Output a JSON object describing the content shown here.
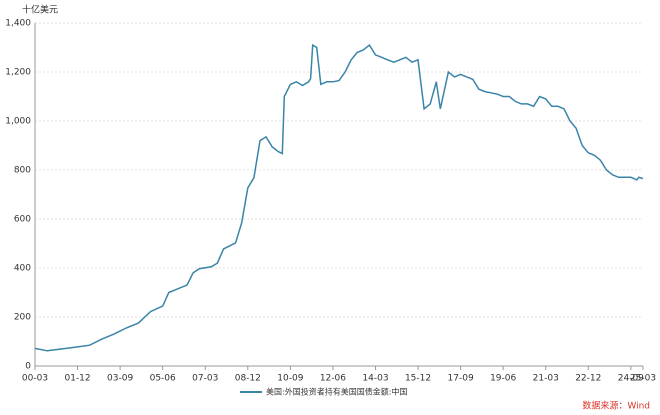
{
  "chart_data": {
    "type": "line",
    "unit_label": "十亿美元",
    "source": "数据来源：Wind",
    "x": [
      "00-03",
      "00-09",
      "01-03",
      "01-12",
      "02-06",
      "02-12",
      "03-06",
      "03-12",
      "04-06",
      "04-12",
      "05-06",
      "05-09",
      "05-12",
      "06-06",
      "06-09",
      "06-12",
      "07-06",
      "07-09",
      "07-12",
      "08-03",
      "08-06",
      "08-09",
      "08-12",
      "09-03",
      "09-06",
      "09-09",
      "09-12",
      "10-03",
      "10-05",
      "10-06",
      "10-09",
      "10-12",
      "11-03",
      "11-06",
      "11-07",
      "11-08",
      "11-10",
      "11-12",
      "12-03",
      "12-06",
      "12-09",
      "12-12",
      "13-03",
      "13-06",
      "13-09",
      "13-12",
      "14-03",
      "14-06",
      "14-09",
      "14-12",
      "15-03",
      "15-06",
      "15-09",
      "15-12",
      "16-03",
      "16-06",
      "16-09",
      "16-11",
      "17-03",
      "17-06",
      "17-09",
      "17-12",
      "18-03",
      "18-06",
      "18-09",
      "18-12",
      "19-03",
      "19-06",
      "19-09",
      "19-12",
      "20-03",
      "20-06",
      "20-09",
      "20-12",
      "21-03",
      "21-06",
      "21-09",
      "21-12",
      "22-03",
      "22-06",
      "22-09",
      "22-12",
      "23-03",
      "23-06",
      "23-09",
      "23-12",
      "24-03",
      "24-06",
      "24-09",
      "24-12",
      "25-01",
      "25-03"
    ],
    "xticks": [
      "00-03",
      "01-12",
      "03-09",
      "05-06",
      "07-03",
      "08-12",
      "10-09",
      "12-06",
      "14-03",
      "15-12",
      "17-09",
      "19-06",
      "21-03",
      "22-12",
      "24-09"
    ],
    "x_end_label": "25-03",
    "series": [
      {
        "name": "美国:外国投资者持有美国国债金额:中国",
        "color": "#3a84a8",
        "values": [
          72,
          62,
          68,
          78,
          85,
          110,
          130,
          155,
          175,
          222,
          245,
          300,
          310,
          330,
          380,
          397,
          405,
          420,
          478,
          490,
          503,
          585,
          727,
          768,
          920,
          935,
          895,
          875,
          867,
          1100,
          1150,
          1160,
          1145,
          1160,
          1173,
          1310,
          1300,
          1150,
          1160,
          1160,
          1165,
          1200,
          1250,
          1280,
          1290,
          1310,
          1270,
          1260,
          1250,
          1240,
          1250,
          1260,
          1240,
          1250,
          1050,
          1070,
          1160,
          1050,
          1200,
          1180,
          1190,
          1180,
          1170,
          1130,
          1120,
          1115,
          1110,
          1100,
          1100,
          1080,
          1070,
          1070,
          1060,
          1100,
          1090,
          1060,
          1060,
          1050,
          1000,
          970,
          900,
          870,
          860,
          840,
          800,
          780,
          770,
          770,
          770,
          760,
          770,
          765
        ]
      }
    ],
    "ylim": [
      0,
      1400
    ],
    "yticks": [
      0,
      200,
      400,
      600,
      800,
      {
        "value": 1000,
        "label": "1,000"
      },
      {
        "value": 1200,
        "label": "1,200"
      },
      {
        "value": 1400,
        "label": "1,400"
      }
    ]
  }
}
